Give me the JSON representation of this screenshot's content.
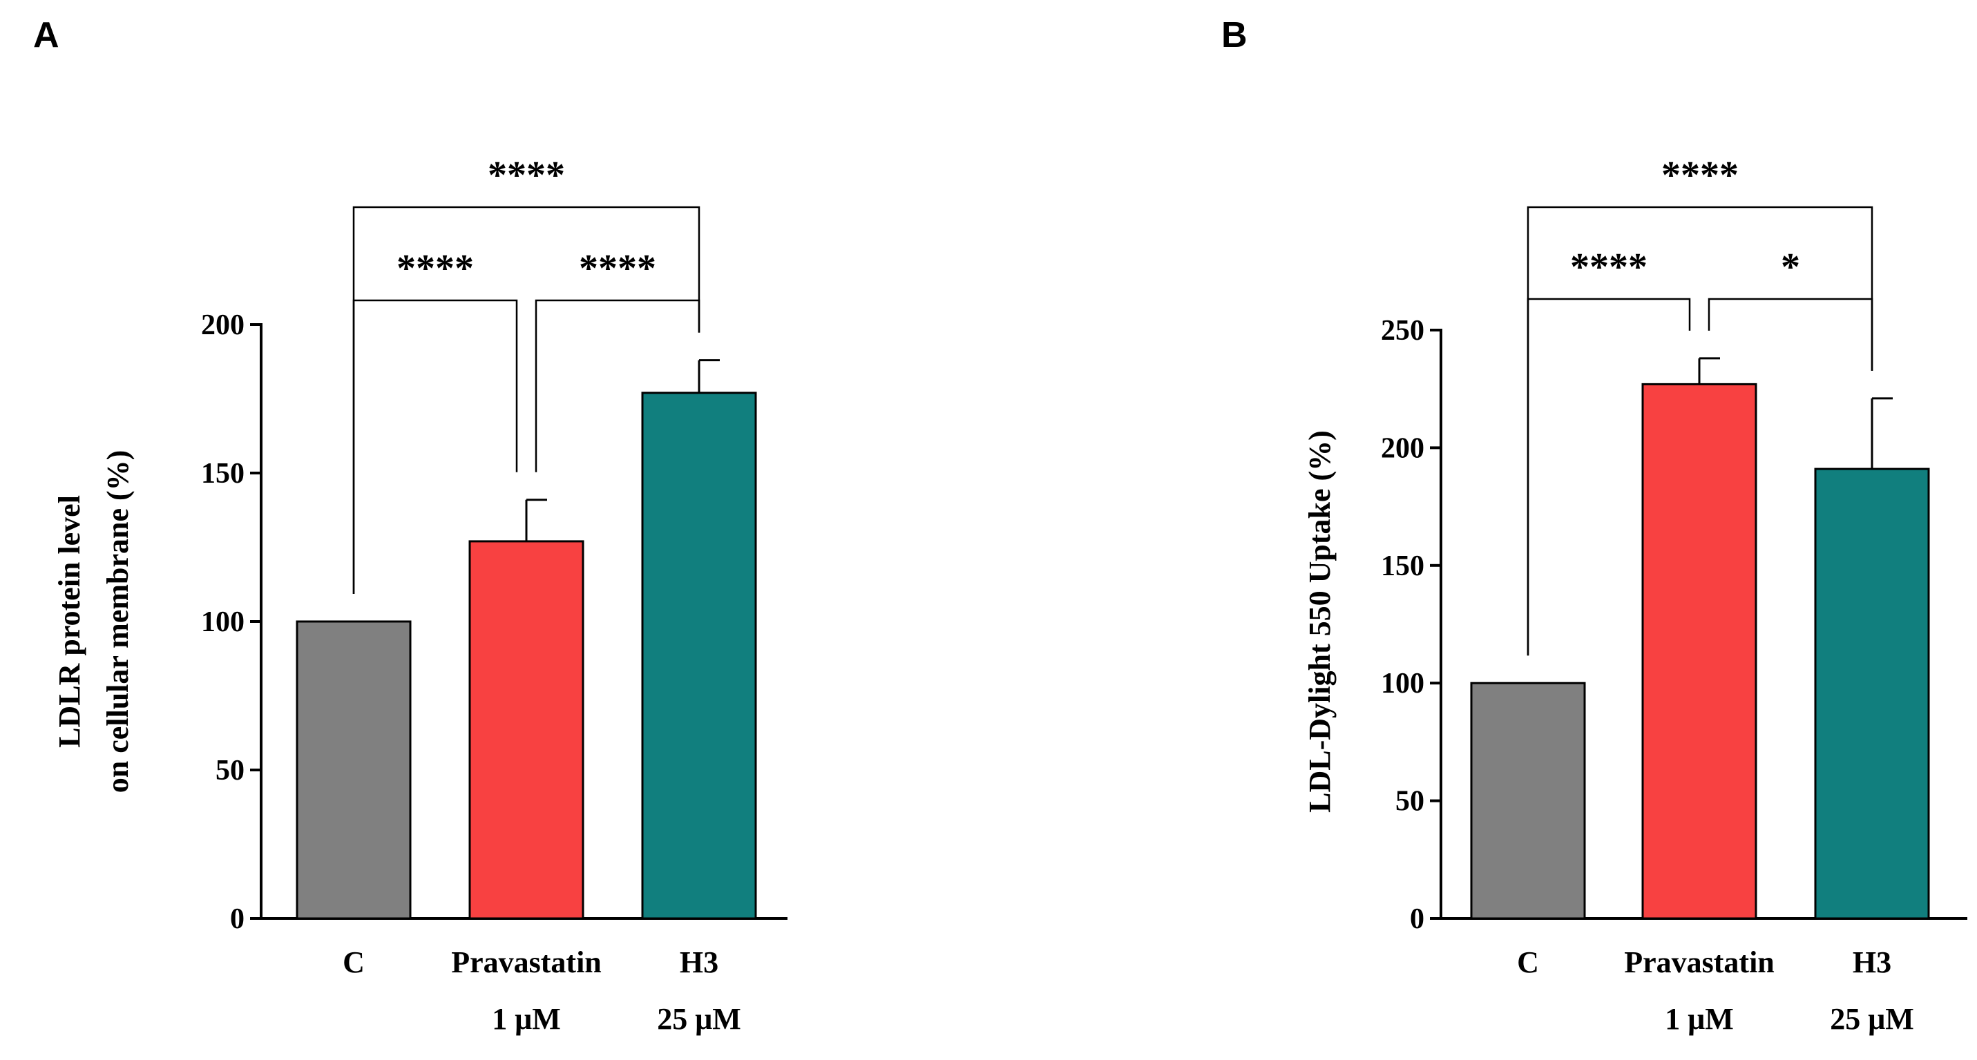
{
  "chart_data": [
    {
      "type": "bar",
      "panel": "A",
      "categories": [
        "C",
        "Pravastatin",
        "H3"
      ],
      "category_sublabels": [
        "",
        "1 μM",
        "25 μM"
      ],
      "values": [
        100,
        127,
        177
      ],
      "errors": [
        0,
        14,
        11
      ],
      "colors": [
        "#808080",
        "#f84141",
        "#117f7e"
      ],
      "ylabel_lines": [
        "LDLR protein level",
        "on cellular membrane  (%)"
      ],
      "ylim": [
        0,
        200
      ],
      "yticks": [
        0,
        50,
        100,
        150,
        200
      ],
      "significance": [
        {
          "from": 0,
          "to": 2,
          "label": "****",
          "level": 2
        },
        {
          "from": 0,
          "to": 1,
          "label": "****",
          "level": 1
        },
        {
          "from": 1,
          "to": 2,
          "label": "****",
          "level": 1
        }
      ]
    },
    {
      "type": "bar",
      "panel": "B",
      "categories": [
        "C",
        "Pravastatin",
        "H3"
      ],
      "category_sublabels": [
        "",
        "1 μM",
        "25 μM"
      ],
      "values": [
        100,
        227,
        191
      ],
      "errors": [
        0,
        11,
        30
      ],
      "colors": [
        "#808080",
        "#f84141",
        "#117f7e"
      ],
      "ylabel_lines": [
        "LDL-Dylight 550 Uptake (%)"
      ],
      "ylim": [
        0,
        250
      ],
      "yticks": [
        0,
        50,
        100,
        150,
        200,
        250
      ],
      "significance": [
        {
          "from": 0,
          "to": 2,
          "label": "****",
          "level": 2
        },
        {
          "from": 0,
          "to": 1,
          "label": "****",
          "level": 1
        },
        {
          "from": 1,
          "to": 2,
          "label": "*",
          "level": 1
        }
      ]
    }
  ]
}
